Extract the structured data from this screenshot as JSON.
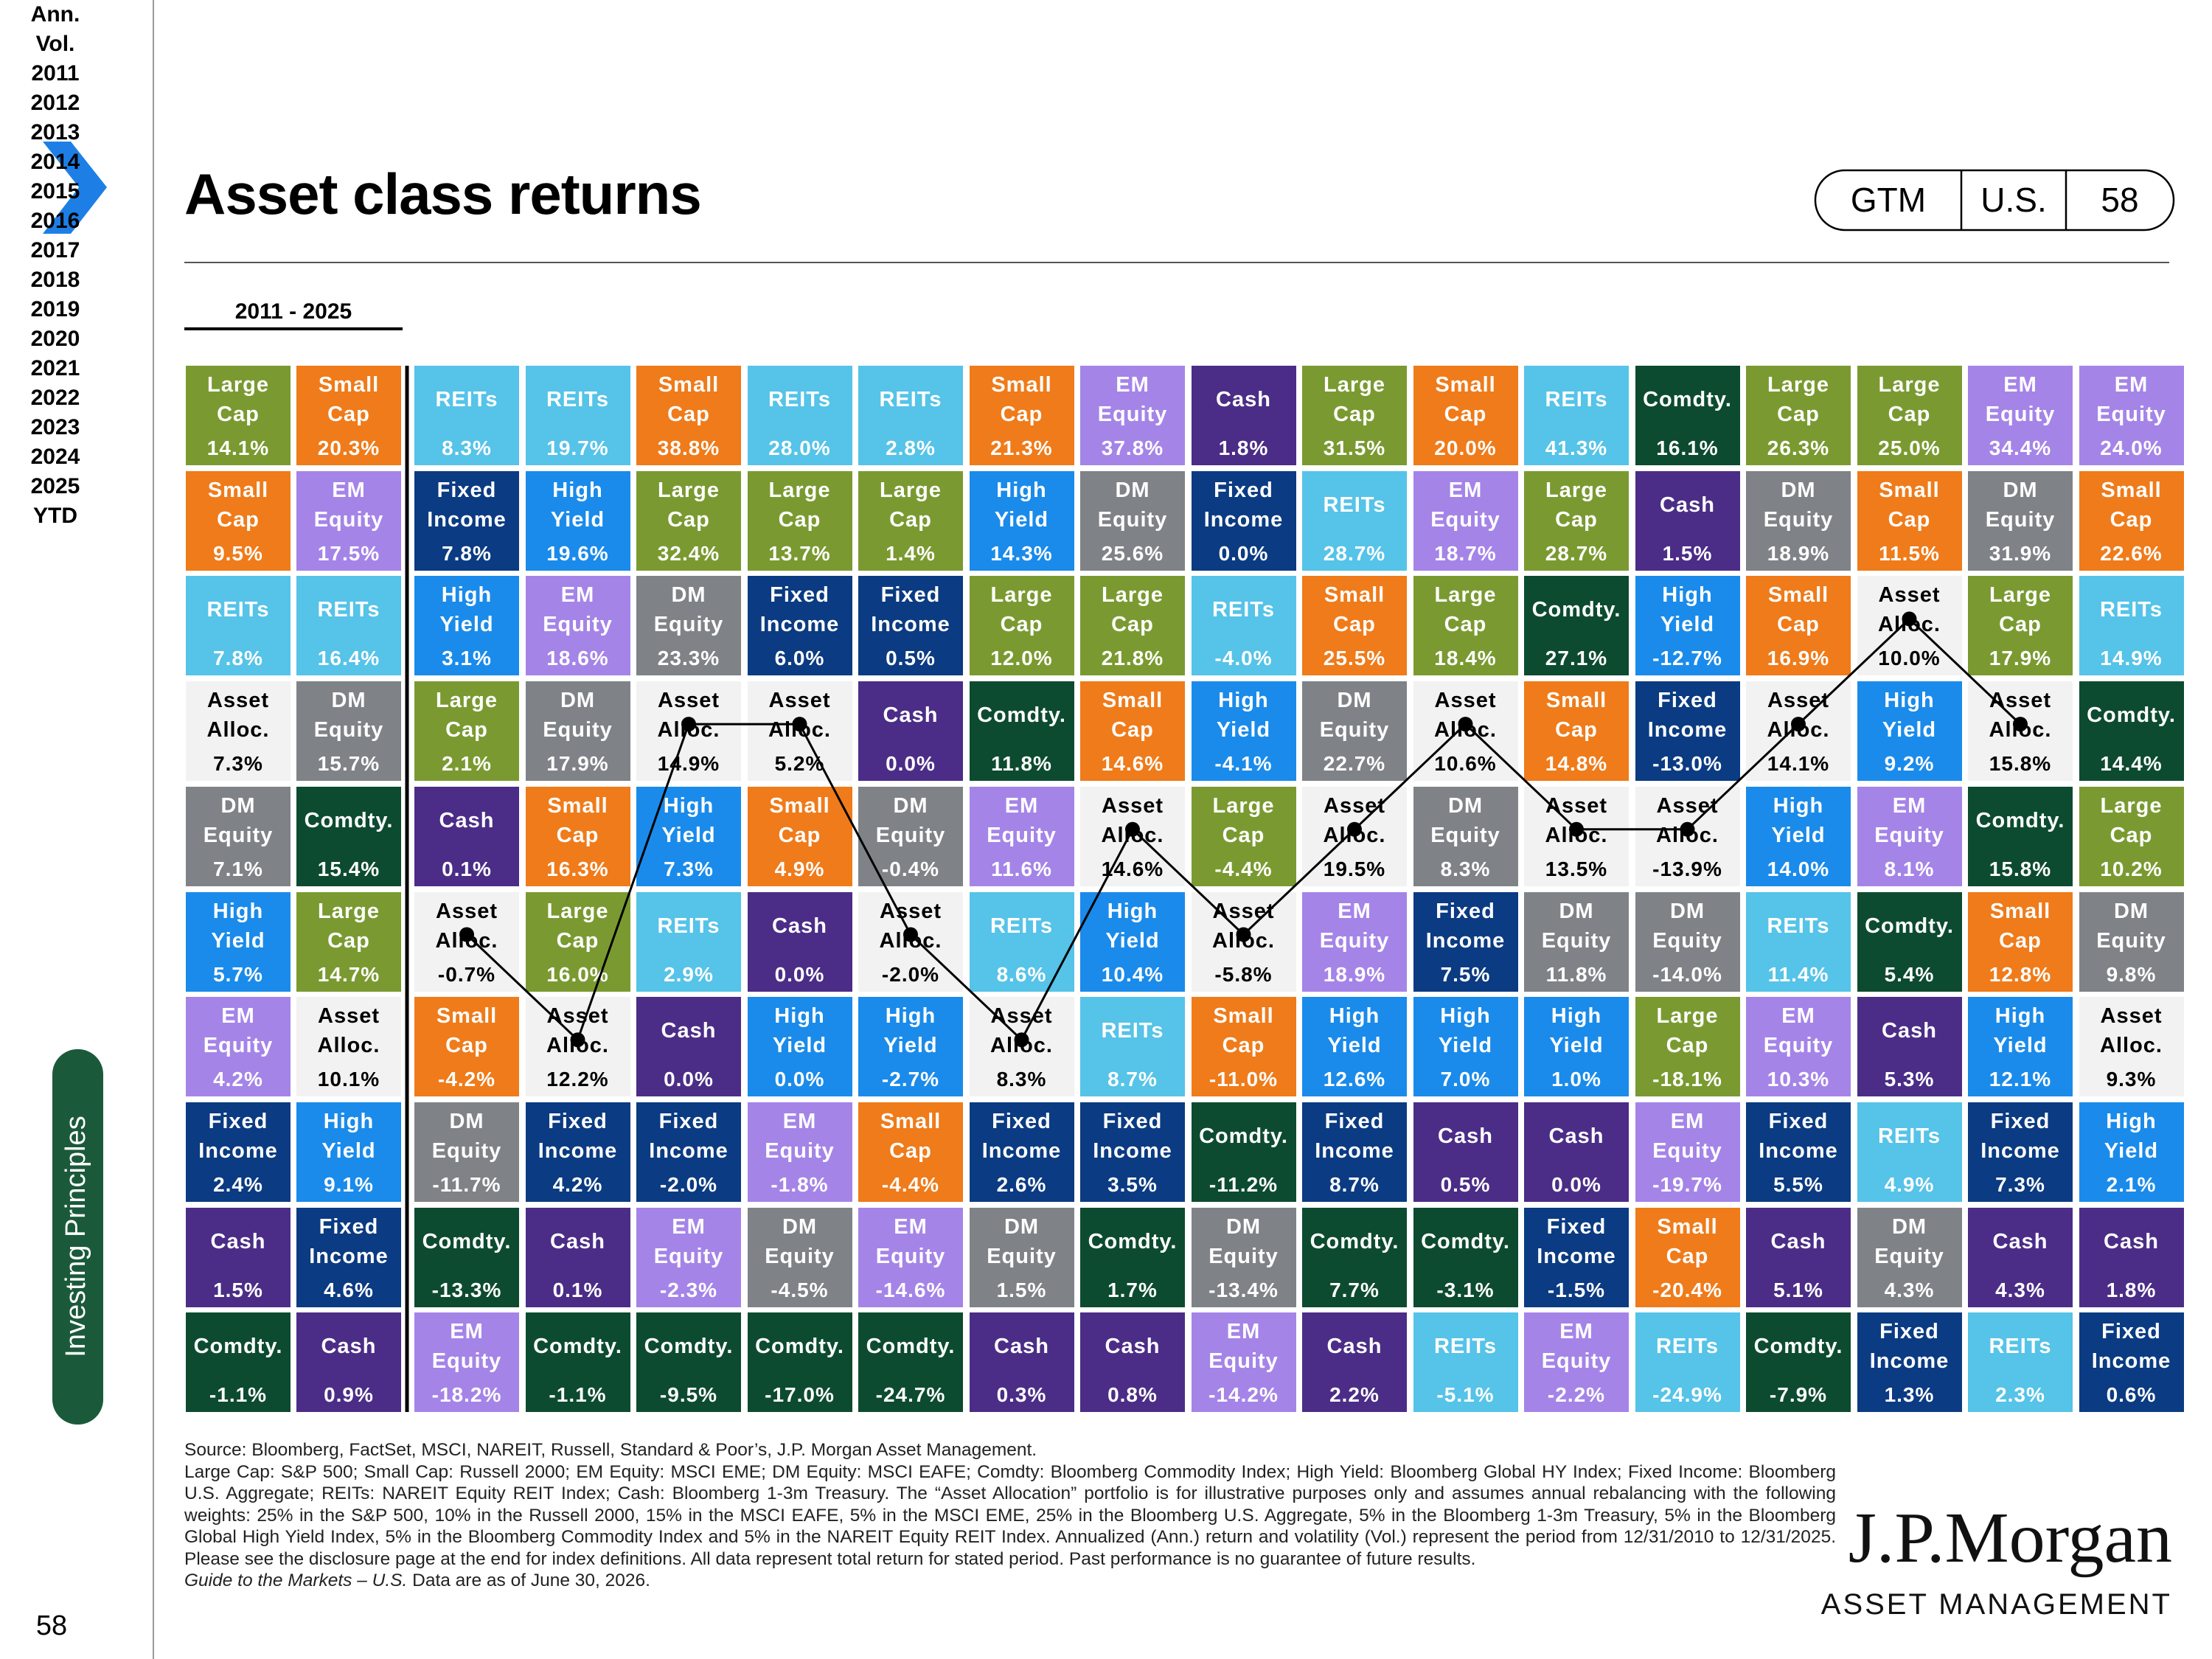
{
  "header": {
    "title": "Asset class returns",
    "tags": [
      "GTM",
      "U.S.",
      "58"
    ]
  },
  "sidebar": {
    "section": "Investing Principles",
    "page": "58"
  },
  "table": {
    "period": "2011 - 2025",
    "columns": [
      {
        "name": "Ann.",
        "cells": [
          {
            "label": "Large Cap",
            "value": "14.1%"
          },
          {
            "label": "Small Cap",
            "value": "9.5%"
          },
          {
            "label": "REITs",
            "value": "7.8%"
          },
          {
            "label": "Asset Alloc.",
            "value": "7.3%"
          },
          {
            "label": "DM Equity",
            "value": "7.1%"
          },
          {
            "label": "High Yield",
            "value": "5.7%"
          },
          {
            "label": "EM Equity",
            "value": "4.2%"
          },
          {
            "label": "Fixed Income",
            "value": "2.4%"
          },
          {
            "label": "Cash",
            "value": "1.5%"
          },
          {
            "label": "Comdty.",
            "value": "-1.1%"
          }
        ]
      },
      {
        "name": "Vol.",
        "cells": [
          {
            "label": "Small Cap",
            "value": "20.3%"
          },
          {
            "label": "EM Equity",
            "value": "17.5%"
          },
          {
            "label": "REITs",
            "value": "16.4%"
          },
          {
            "label": "DM Equity",
            "value": "15.7%"
          },
          {
            "label": "Comdty.",
            "value": "15.4%"
          },
          {
            "label": "Large Cap",
            "value": "14.7%"
          },
          {
            "label": "Asset Alloc.",
            "value": "10.1%"
          },
          {
            "label": "High Yield",
            "value": "9.1%"
          },
          {
            "label": "Fixed Income",
            "value": "4.6%"
          },
          {
            "label": "Cash",
            "value": "0.9%"
          }
        ]
      },
      {
        "name": "2011",
        "connected": true,
        "cells": [
          {
            "label": "REITs",
            "value": "8.3%"
          },
          {
            "label": "Fixed Income",
            "value": "7.8%"
          },
          {
            "label": "High Yield",
            "value": "3.1%"
          },
          {
            "label": "Large Cap",
            "value": "2.1%"
          },
          {
            "label": "Cash",
            "value": "0.1%"
          },
          {
            "label": "Asset Alloc.",
            "value": "-0.7%"
          },
          {
            "label": "Small Cap",
            "value": "-4.2%"
          },
          {
            "label": "DM Equity",
            "value": "-11.7%"
          },
          {
            "label": "Comdty.",
            "value": "-13.3%"
          },
          {
            "label": "EM Equity",
            "value": "-18.2%"
          }
        ]
      },
      {
        "name": "2012",
        "connected": true,
        "cells": [
          {
            "label": "REITs",
            "value": "19.7%"
          },
          {
            "label": "High Yield",
            "value": "19.6%"
          },
          {
            "label": "EM Equity",
            "value": "18.6%"
          },
          {
            "label": "DM Equity",
            "value": "17.9%"
          },
          {
            "label": "Small Cap",
            "value": "16.3%"
          },
          {
            "label": "Large Cap",
            "value": "16.0%"
          },
          {
            "label": "Asset Alloc.",
            "value": "12.2%"
          },
          {
            "label": "Fixed Income",
            "value": "4.2%"
          },
          {
            "label": "Cash",
            "value": "0.1%"
          },
          {
            "label": "Comdty.",
            "value": "-1.1%"
          }
        ]
      },
      {
        "name": "2013",
        "connected": true,
        "cells": [
          {
            "label": "Small Cap",
            "value": "38.8%"
          },
          {
            "label": "Large Cap",
            "value": "32.4%"
          },
          {
            "label": "DM Equity",
            "value": "23.3%"
          },
          {
            "label": "Asset Alloc.",
            "value": "14.9%"
          },
          {
            "label": "High Yield",
            "value": "7.3%"
          },
          {
            "label": "REITs",
            "value": "2.9%"
          },
          {
            "label": "Cash",
            "value": "0.0%"
          },
          {
            "label": "Fixed Income",
            "value": "-2.0%"
          },
          {
            "label": "EM Equity",
            "value": "-2.3%"
          },
          {
            "label": "Comdty.",
            "value": "-9.5%"
          }
        ]
      },
      {
        "name": "2014",
        "connected": true,
        "cells": [
          {
            "label": "REITs",
            "value": "28.0%"
          },
          {
            "label": "Large Cap",
            "value": "13.7%"
          },
          {
            "label": "Fixed Income",
            "value": "6.0%"
          },
          {
            "label": "Asset Alloc.",
            "value": "5.2%"
          },
          {
            "label": "Small Cap",
            "value": "4.9%"
          },
          {
            "label": "Cash",
            "value": "0.0%"
          },
          {
            "label": "High Yield",
            "value": "0.0%"
          },
          {
            "label": "EM Equity",
            "value": "-1.8%"
          },
          {
            "label": "DM Equity",
            "value": "-4.5%"
          },
          {
            "label": "Comdty.",
            "value": "-17.0%"
          }
        ]
      },
      {
        "name": "2015",
        "connected": true,
        "cells": [
          {
            "label": "REITs",
            "value": "2.8%"
          },
          {
            "label": "Large Cap",
            "value": "1.4%"
          },
          {
            "label": "Fixed Income",
            "value": "0.5%"
          },
          {
            "label": "Cash",
            "value": "0.0%"
          },
          {
            "label": "DM Equity",
            "value": "-0.4%"
          },
          {
            "label": "Asset Alloc.",
            "value": "-2.0%"
          },
          {
            "label": "High Yield",
            "value": "-2.7%"
          },
          {
            "label": "Small Cap",
            "value": "-4.4%"
          },
          {
            "label": "EM Equity",
            "value": "-14.6%"
          },
          {
            "label": "Comdty.",
            "value": "-24.7%"
          }
        ]
      },
      {
        "name": "2016",
        "connected": true,
        "cells": [
          {
            "label": "Small Cap",
            "value": "21.3%"
          },
          {
            "label": "High Yield",
            "value": "14.3%"
          },
          {
            "label": "Large Cap",
            "value": "12.0%"
          },
          {
            "label": "Comdty.",
            "value": "11.8%"
          },
          {
            "label": "EM Equity",
            "value": "11.6%"
          },
          {
            "label": "REITs",
            "value": "8.6%"
          },
          {
            "label": "Asset Alloc.",
            "value": "8.3%"
          },
          {
            "label": "Fixed Income",
            "value": "2.6%"
          },
          {
            "label": "DM Equity",
            "value": "1.5%"
          },
          {
            "label": "Cash",
            "value": "0.3%"
          }
        ]
      },
      {
        "name": "2017",
        "connected": true,
        "cells": [
          {
            "label": "EM Equity",
            "value": "37.8%"
          },
          {
            "label": "DM Equity",
            "value": "25.6%"
          },
          {
            "label": "Large Cap",
            "value": "21.8%"
          },
          {
            "label": "Small Cap",
            "value": "14.6%"
          },
          {
            "label": "Asset Alloc.",
            "value": "14.6%"
          },
          {
            "label": "High Yield",
            "value": "10.4%"
          },
          {
            "label": "REITs",
            "value": "8.7%"
          },
          {
            "label": "Fixed Income",
            "value": "3.5%"
          },
          {
            "label": "Comdty.",
            "value": "1.7%"
          },
          {
            "label": "Cash",
            "value": "0.8%"
          }
        ]
      },
      {
        "name": "2018",
        "connected": true,
        "cells": [
          {
            "label": "Cash",
            "value": "1.8%"
          },
          {
            "label": "Fixed Income",
            "value": "0.0%"
          },
          {
            "label": "REITs",
            "value": "-4.0%"
          },
          {
            "label": "High Yield",
            "value": "-4.1%"
          },
          {
            "label": "Large Cap",
            "value": "-4.4%"
          },
          {
            "label": "Asset Alloc.",
            "value": "-5.8%"
          },
          {
            "label": "Small Cap",
            "value": "-11.0%"
          },
          {
            "label": "Comdty.",
            "value": "-11.2%"
          },
          {
            "label": "DM Equity",
            "value": "-13.4%"
          },
          {
            "label": "EM Equity",
            "value": "-14.2%"
          }
        ]
      },
      {
        "name": "2019",
        "connected": true,
        "cells": [
          {
            "label": "Large Cap",
            "value": "31.5%"
          },
          {
            "label": "REITs",
            "value": "28.7%"
          },
          {
            "label": "Small Cap",
            "value": "25.5%"
          },
          {
            "label": "DM Equity",
            "value": "22.7%"
          },
          {
            "label": "Asset Alloc.",
            "value": "19.5%"
          },
          {
            "label": "EM Equity",
            "value": "18.9%"
          },
          {
            "label": "High Yield",
            "value": "12.6%"
          },
          {
            "label": "Fixed Income",
            "value": "8.7%"
          },
          {
            "label": "Comdty.",
            "value": "7.7%"
          },
          {
            "label": "Cash",
            "value": "2.2%"
          }
        ]
      },
      {
        "name": "2020",
        "connected": true,
        "cells": [
          {
            "label": "Small Cap",
            "value": "20.0%"
          },
          {
            "label": "EM Equity",
            "value": "18.7%"
          },
          {
            "label": "Large Cap",
            "value": "18.4%"
          },
          {
            "label": "Asset Alloc.",
            "value": "10.6%"
          },
          {
            "label": "DM Equity",
            "value": "8.3%"
          },
          {
            "label": "Fixed Income",
            "value": "7.5%"
          },
          {
            "label": "High Yield",
            "value": "7.0%"
          },
          {
            "label": "Cash",
            "value": "0.5%"
          },
          {
            "label": "Comdty.",
            "value": "-3.1%"
          },
          {
            "label": "REITs",
            "value": "-5.1%"
          }
        ]
      },
      {
        "name": "2021",
        "connected": true,
        "cells": [
          {
            "label": "REITs",
            "value": "41.3%"
          },
          {
            "label": "Large Cap",
            "value": "28.7%"
          },
          {
            "label": "Comdty.",
            "value": "27.1%"
          },
          {
            "label": "Small Cap",
            "value": "14.8%"
          },
          {
            "label": "Asset Alloc.",
            "value": "13.5%"
          },
          {
            "label": "DM Equity",
            "value": "11.8%"
          },
          {
            "label": "High Yield",
            "value": "1.0%"
          },
          {
            "label": "Cash",
            "value": "0.0%"
          },
          {
            "label": "Fixed Income",
            "value": "-1.5%"
          },
          {
            "label": "EM Equity",
            "value": "-2.2%"
          }
        ]
      },
      {
        "name": "2022",
        "connected": true,
        "cells": [
          {
            "label": "Comdty.",
            "value": "16.1%"
          },
          {
            "label": "Cash",
            "value": "1.5%"
          },
          {
            "label": "High Yield",
            "value": "-12.7%"
          },
          {
            "label": "Fixed Income",
            "value": "-13.0%"
          },
          {
            "label": "Asset Alloc.",
            "value": "-13.9%"
          },
          {
            "label": "DM Equity",
            "value": "-14.0%"
          },
          {
            "label": "Large Cap",
            "value": "-18.1%"
          },
          {
            "label": "EM Equity",
            "value": "-19.7%"
          },
          {
            "label": "Small Cap",
            "value": "-20.4%"
          },
          {
            "label": "REITs",
            "value": "-24.9%"
          }
        ]
      },
      {
        "name": "2023",
        "connected": true,
        "cells": [
          {
            "label": "Large Cap",
            "value": "26.3%"
          },
          {
            "label": "DM Equity",
            "value": "18.9%"
          },
          {
            "label": "Small Cap",
            "value": "16.9%"
          },
          {
            "label": "Asset Alloc.",
            "value": "14.1%"
          },
          {
            "label": "High Yield",
            "value": "14.0%"
          },
          {
            "label": "REITs",
            "value": "11.4%"
          },
          {
            "label": "EM Equity",
            "value": "10.3%"
          },
          {
            "label": "Fixed Income",
            "value": "5.5%"
          },
          {
            "label": "Cash",
            "value": "5.1%"
          },
          {
            "label": "Comdty.",
            "value": "-7.9%"
          }
        ]
      },
      {
        "name": "2024",
        "connected": true,
        "cells": [
          {
            "label": "Large Cap",
            "value": "25.0%"
          },
          {
            "label": "Small Cap",
            "value": "11.5%"
          },
          {
            "label": "Asset Alloc.",
            "value": "10.0%"
          },
          {
            "label": "High Yield",
            "value": "9.2%"
          },
          {
            "label": "EM Equity",
            "value": "8.1%"
          },
          {
            "label": "Comdty.",
            "value": "5.4%"
          },
          {
            "label": "Cash",
            "value": "5.3%"
          },
          {
            "label": "REITs",
            "value": "4.9%"
          },
          {
            "label": "DM Equity",
            "value": "4.3%"
          },
          {
            "label": "Fixed Income",
            "value": "1.3%"
          }
        ]
      },
      {
        "name": "2025",
        "connected": true,
        "cells": [
          {
            "label": "EM Equity",
            "value": "34.4%"
          },
          {
            "label": "DM Equity",
            "value": "31.9%"
          },
          {
            "label": "Large Cap",
            "value": "17.9%"
          },
          {
            "label": "Asset Alloc.",
            "value": "15.8%"
          },
          {
            "label": "Comdty.",
            "value": "15.8%"
          },
          {
            "label": "Small Cap",
            "value": "12.8%"
          },
          {
            "label": "High Yield",
            "value": "12.1%"
          },
          {
            "label": "Fixed Income",
            "value": "7.3%"
          },
          {
            "label": "Cash",
            "value": "4.3%"
          },
          {
            "label": "REITs",
            "value": "2.3%"
          }
        ]
      },
      {
        "name": "YTD",
        "cells": [
          {
            "label": "EM Equity",
            "value": "24.0%"
          },
          {
            "label": "Small Cap",
            "value": "22.6%"
          },
          {
            "label": "REITs",
            "value": "14.9%"
          },
          {
            "label": "Comdty.",
            "value": "14.4%"
          },
          {
            "label": "Large Cap",
            "value": "10.2%"
          },
          {
            "label": "DM Equity",
            "value": "9.8%"
          },
          {
            "label": "Asset Alloc.",
            "value": "9.3%"
          },
          {
            "label": "High Yield",
            "value": "2.1%"
          },
          {
            "label": "Cash",
            "value": "1.8%"
          },
          {
            "label": "Fixed Income",
            "value": "0.6%"
          }
        ]
      }
    ]
  },
  "asset_styles": [
    {
      "name": "Large Cap",
      "color": "#7a9a31",
      "text_color": "#ffffff"
    },
    {
      "name": "Small Cap",
      "color": "#ef7b1a",
      "text_color": "#ffffff"
    },
    {
      "name": "EM Equity",
      "color": "#a584e8",
      "text_color": "#ffffff"
    },
    {
      "name": "REITs",
      "color": "#56c3e8",
      "text_color": "#ffffff"
    },
    {
      "name": "Fixed Income",
      "color": "#0b3b82",
      "text_color": "#ffffff"
    },
    {
      "name": "High Yield",
      "color": "#1a8bea",
      "text_color": "#ffffff"
    },
    {
      "name": "DM Equity",
      "color": "#7f8387",
      "text_color": "#ffffff"
    },
    {
      "name": "Cash",
      "color": "#4b2d87",
      "text_color": "#ffffff"
    },
    {
      "name": "Comdty.",
      "color": "#0d4b30",
      "text_color": "#ffffff"
    },
    {
      "name": "Asset Alloc.",
      "color": "#f2f2f2",
      "text_color": "#000000",
      "line": true
    }
  ],
  "footer": {
    "source": "Source: Bloomberg, FactSet, MSCI, NAREIT, Russell, Standard & Poor’s, J.P. Morgan Asset Management.",
    "note": "Large Cap: S&P 500; Small Cap: Russell 2000; EM Equity: MSCI EME; DM Equity: MSCI EAFE; Comdty: Bloomberg Commodity Index; High Yield: Bloomberg Global HY Index; Fixed Income: Bloomberg U.S. Aggregate; REITs: NAREIT Equity REIT Index; Cash: Bloomberg 1-3m Treasury. The “Asset Allocation” portfolio is for illustrative purposes only and assumes annual rebalancing with the following weights: 25% in the S&P 500, 10% in the Russell 2000, 15% in the MSCI EAFE, 5% in the MSCI EME, 25% in the Bloomberg U.S. Aggregate, 5% in the Bloomberg 1-3m Treasury, 5% in the Bloomberg Global High Yield Index, 5% in the Bloomberg Commodity Index and 5% in the NAREIT Equity REIT Index. Annualized (Ann.) return and volatility (Vol.) represent the period from 12/31/2010 to 12/31/2025. Please see the disclosure page at the end for index definitions. All data represent total return for stated period. Past performance is no guarantee of future results.",
    "guide": "Guide to the Markets – U.S.",
    "date": "Data are as of June 30, 2026."
  },
  "logo": {
    "name": "J.P.Morgan",
    "sub": "ASSET MANAGEMENT"
  }
}
